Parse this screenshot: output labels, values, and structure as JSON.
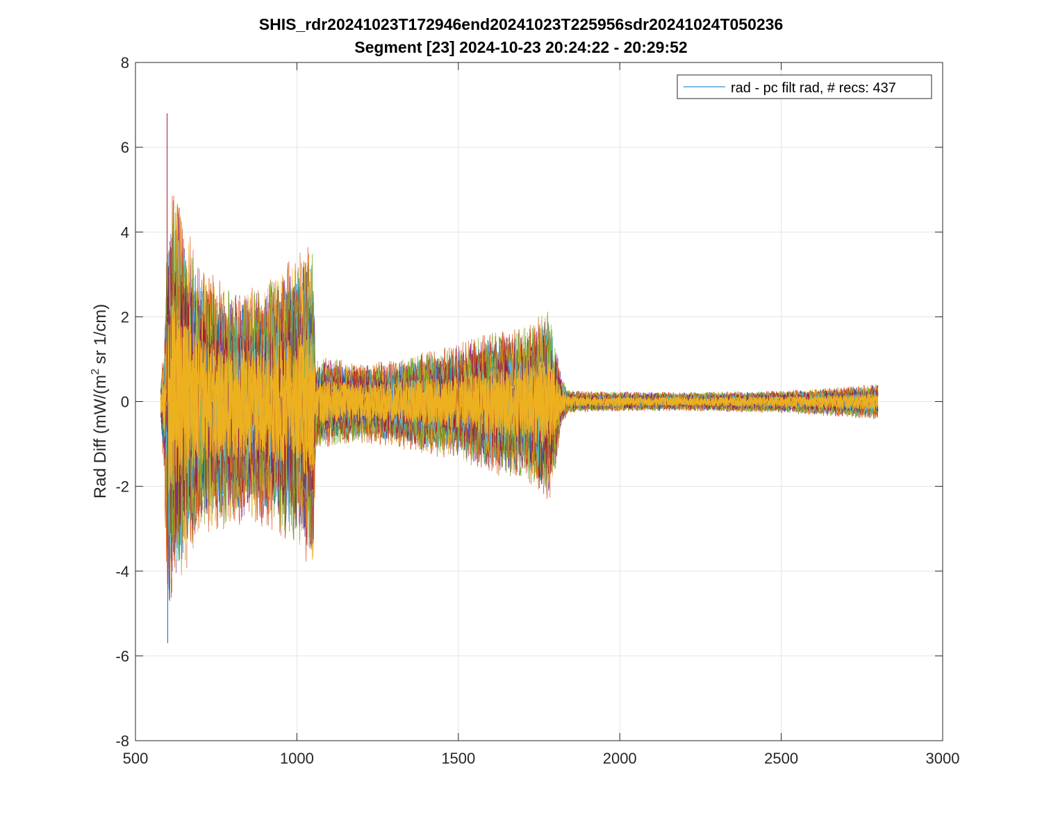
{
  "chart_data": {
    "type": "line",
    "title": "SHIS_rdr20241023T172946end20241023T225956sdr20241024T050236",
    "subtitle": "Segment [23] 2024-10-23 20:24:22 - 20:29:52",
    "xlabel": "",
    "ylabel_main": "Rad Diff (mW/(m",
    "ylabel_sup": "2",
    "ylabel_tail": " sr 1/cm)",
    "xlim": [
      500,
      3000
    ],
    "ylim": [
      -8,
      8
    ],
    "xticks": [
      500,
      1000,
      1500,
      2000,
      2500,
      3000
    ],
    "yticks": [
      -8,
      -6,
      -4,
      -2,
      0,
      2,
      4,
      6,
      8
    ],
    "grid": true,
    "legend": {
      "position": "top-right",
      "label": "rad - pc filt rad, # recs:  437"
    },
    "series_count": 437,
    "series_colors": [
      "#0072BD",
      "#D95319",
      "#EDB120",
      "#7E2F8E",
      "#77AC30",
      "#4DBEEE",
      "#A2142F"
    ],
    "envelope": {
      "x": [
        578,
        590,
        600,
        620,
        650,
        700,
        800,
        900,
        1000,
        1050,
        1058,
        1100,
        1200,
        1300,
        1400,
        1500,
        1600,
        1700,
        1780,
        1800,
        1820,
        1840,
        1900,
        2000,
        2200,
        2500,
        2700,
        2800
      ],
      "upper": [
        0.5,
        1.5,
        4.8,
        5.3,
        4.5,
        3.3,
        2.7,
        2.8,
        3.6,
        3.8,
        1.0,
        1.1,
        0.9,
        1.0,
        1.2,
        1.4,
        1.7,
        1.8,
        2.3,
        1.5,
        0.6,
        0.28,
        0.25,
        0.24,
        0.23,
        0.26,
        0.36,
        0.45
      ],
      "lower": [
        -0.6,
        -2.0,
        -5.5,
        -4.6,
        -4.2,
        -3.3,
        -3.0,
        -3.0,
        -3.5,
        -4.2,
        -1.2,
        -1.1,
        -1.0,
        -1.1,
        -1.3,
        -1.4,
        -1.8,
        -1.9,
        -2.5,
        -1.7,
        -0.6,
        -0.28,
        -0.25,
        -0.24,
        -0.23,
        -0.28,
        -0.38,
        -0.45
      ]
    },
    "peak_max": {
      "x": 598,
      "y": 6.8
    },
    "peak_min": {
      "x": 600,
      "y": -5.7
    }
  }
}
